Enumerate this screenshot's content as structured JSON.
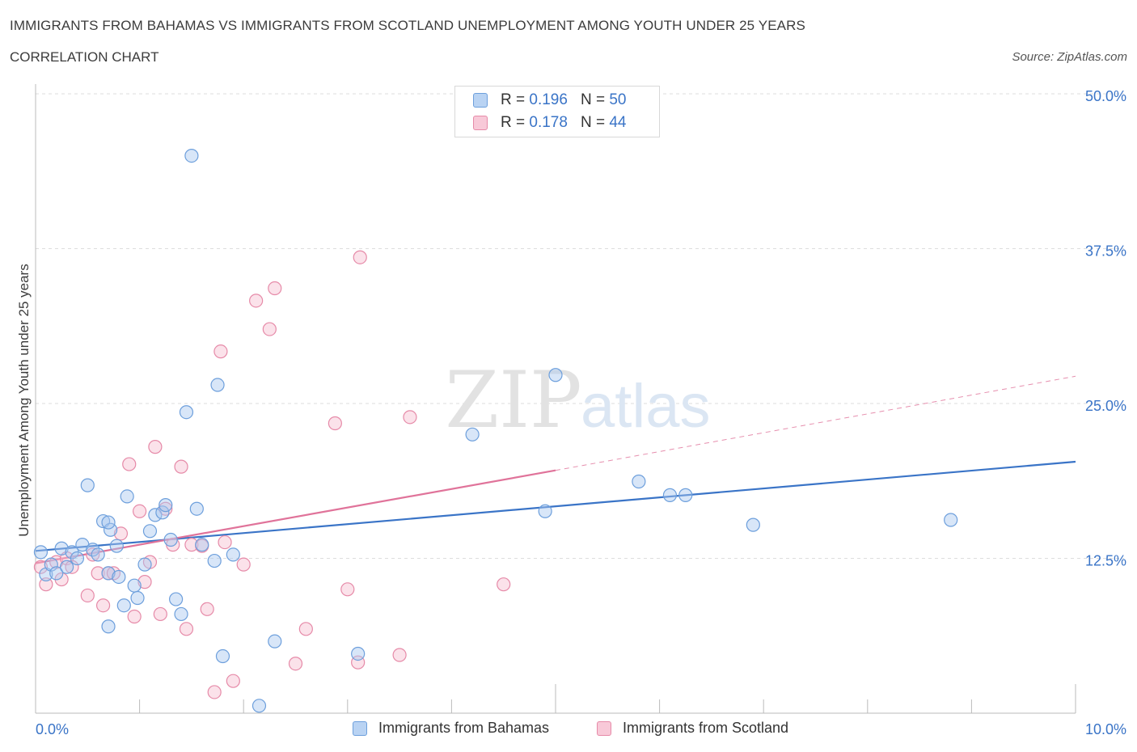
{
  "header": {
    "title": "IMMIGRANTS FROM BAHAMAS VS IMMIGRANTS FROM SCOTLAND UNEMPLOYMENT AMONG YOUTH UNDER 25 YEARS",
    "subtitle": "CORRELATION CHART",
    "source": "Source: ZipAtlas.com"
  },
  "watermark": {
    "zip": "ZIP",
    "atlas": "atlas"
  },
  "legend": {
    "rows": [
      {
        "r_label": "R =",
        "r_value": "0.196",
        "n_label": "N =",
        "n_value": "50"
      },
      {
        "r_label": "R =",
        "r_value": "0.178",
        "n_label": "N =",
        "n_value": "44"
      }
    ]
  },
  "bottom_legend": {
    "bahamas": "Immigrants from Bahamas",
    "scotland": "Immigrants from Scotland"
  },
  "colors": {
    "bahamas_fill": "#a9c8f0",
    "bahamas_stroke": "#6d9fdc",
    "bahamas_line": "#3a74c7",
    "scotland_fill": "#f6bfd0",
    "scotland_stroke": "#e68aa8",
    "scotland_line": "#e0739a",
    "tick_label": "#3a74c7",
    "grid": "#dddddd"
  },
  "chart_data": {
    "type": "scatter",
    "title": "IMMIGRANTS FROM BAHAMAS VS IMMIGRANTS FROM SCOTLAND UNEMPLOYMENT AMONG YOUTH UNDER 25 YEARS",
    "subtitle": "CORRELATION CHART",
    "xlabel": "",
    "ylabel": "Unemployment Among Youth under 25 years",
    "xlim": [
      0,
      10
    ],
    "ylim": [
      0,
      50
    ],
    "x_tick_labels": [
      {
        "value": 0,
        "label": "0.0%"
      },
      {
        "value": 10,
        "label": "10.0%"
      }
    ],
    "y_tick_labels": [
      {
        "value": 12.5,
        "label": "12.5%"
      },
      {
        "value": 25,
        "label": "25.0%"
      },
      {
        "value": 37.5,
        "label": "37.5%"
      },
      {
        "value": 50,
        "label": "50.0%"
      }
    ],
    "grid": "horizontal dashed",
    "legend_placement": "top-center and bottom",
    "series": [
      {
        "name": "Immigrants from Bahamas",
        "r": 0.196,
        "n": 50,
        "trend": {
          "x": [
            0,
            10
          ],
          "y": [
            13.1,
            20.3
          ],
          "style": "solid"
        },
        "points": [
          [
            0.05,
            13.0
          ],
          [
            0.1,
            11.2
          ],
          [
            0.15,
            12.0
          ],
          [
            0.2,
            11.3
          ],
          [
            0.25,
            13.3
          ],
          [
            0.3,
            11.8
          ],
          [
            0.35,
            13.0
          ],
          [
            0.4,
            12.5
          ],
          [
            0.45,
            13.6
          ],
          [
            0.5,
            18.4
          ],
          [
            0.55,
            13.2
          ],
          [
            0.6,
            12.8
          ],
          [
            0.65,
            15.5
          ],
          [
            0.7,
            11.3
          ],
          [
            0.72,
            14.8
          ],
          [
            0.78,
            13.5
          ],
          [
            0.8,
            11.0
          ],
          [
            0.85,
            8.7
          ],
          [
            0.7,
            7.0
          ],
          [
            0.7,
            15.4
          ],
          [
            0.88,
            17.5
          ],
          [
            0.95,
            10.3
          ],
          [
            0.98,
            9.3
          ],
          [
            1.05,
            12.0
          ],
          [
            1.1,
            14.7
          ],
          [
            1.15,
            16.0
          ],
          [
            1.22,
            16.2
          ],
          [
            1.25,
            16.8
          ],
          [
            1.3,
            14.0
          ],
          [
            1.35,
            9.2
          ],
          [
            1.4,
            8.0
          ],
          [
            1.45,
            24.3
          ],
          [
            1.5,
            45.0
          ],
          [
            1.55,
            16.5
          ],
          [
            1.6,
            13.6
          ],
          [
            1.72,
            12.3
          ],
          [
            1.75,
            26.5
          ],
          [
            1.8,
            4.6
          ],
          [
            1.9,
            12.8
          ],
          [
            2.15,
            0.6
          ],
          [
            2.3,
            5.8
          ],
          [
            3.1,
            4.8
          ],
          [
            4.2,
            22.5
          ],
          [
            4.9,
            16.3
          ],
          [
            5.0,
            27.3
          ],
          [
            5.8,
            18.7
          ],
          [
            6.1,
            17.6
          ],
          [
            6.25,
            17.6
          ],
          [
            6.9,
            15.2
          ],
          [
            8.8,
            15.6
          ]
        ]
      },
      {
        "name": "Immigrants from Scotland",
        "r": 0.178,
        "n": 44,
        "trend": {
          "x": [
            0,
            5.0
          ],
          "y": [
            12.1,
            19.6
          ],
          "style": "solid",
          "extension": {
            "x": [
              5.0,
              10
            ],
            "y": [
              19.6,
              27.2
            ],
            "style": "dashed"
          }
        },
        "points": [
          [
            0.05,
            11.8
          ],
          [
            0.1,
            10.4
          ],
          [
            0.2,
            12.2
          ],
          [
            0.25,
            10.8
          ],
          [
            0.3,
            12.5
          ],
          [
            0.35,
            11.8
          ],
          [
            0.5,
            9.5
          ],
          [
            0.55,
            12.8
          ],
          [
            0.6,
            11.3
          ],
          [
            0.65,
            8.7
          ],
          [
            0.7,
            11.3
          ],
          [
            0.75,
            11.3
          ],
          [
            0.82,
            14.5
          ],
          [
            0.9,
            20.1
          ],
          [
            0.95,
            7.8
          ],
          [
            1.0,
            16.3
          ],
          [
            1.05,
            10.6
          ],
          [
            1.1,
            12.2
          ],
          [
            1.15,
            21.5
          ],
          [
            1.2,
            8.0
          ],
          [
            1.25,
            16.5
          ],
          [
            1.32,
            13.6
          ],
          [
            1.4,
            19.9
          ],
          [
            1.45,
            6.8
          ],
          [
            1.5,
            13.6
          ],
          [
            1.6,
            13.5
          ],
          [
            1.65,
            8.4
          ],
          [
            1.72,
            1.7
          ],
          [
            1.78,
            29.2
          ],
          [
            1.82,
            13.8
          ],
          [
            1.9,
            2.6
          ],
          [
            2.0,
            12.0
          ],
          [
            2.12,
            33.3
          ],
          [
            2.25,
            31.0
          ],
          [
            2.3,
            34.3
          ],
          [
            2.5,
            4.0
          ],
          [
            2.6,
            6.8
          ],
          [
            2.88,
            23.4
          ],
          [
            3.0,
            10.0
          ],
          [
            3.1,
            4.1
          ],
          [
            3.12,
            36.8
          ],
          [
            3.5,
            4.7
          ],
          [
            3.6,
            23.9
          ],
          [
            4.5,
            10.4
          ]
        ]
      }
    ]
  }
}
